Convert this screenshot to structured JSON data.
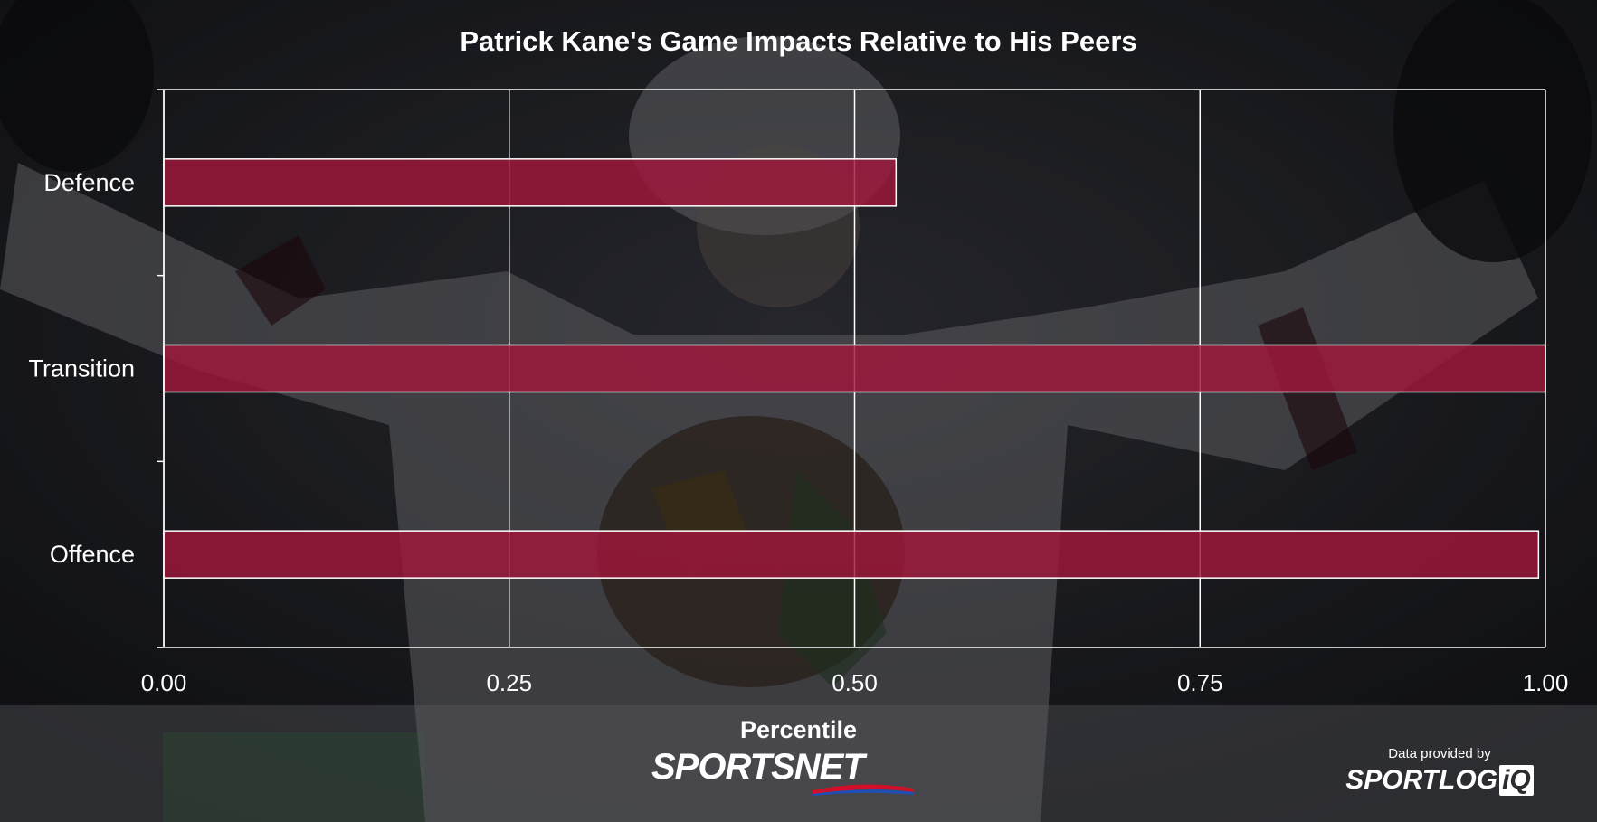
{
  "title": "Patrick Kane's Game Impacts Relative to His Peers",
  "chart_data": {
    "type": "bar",
    "orientation": "horizontal",
    "categories": [
      "Defence",
      "Transition",
      "Offence"
    ],
    "values": [
      0.53,
      1.0,
      0.995
    ],
    "xlabel": "Percentile",
    "xlim": [
      0,
      1
    ],
    "xticks": [
      "0.00",
      "0.25",
      "0.50",
      "0.75",
      "1.00"
    ],
    "grid": true,
    "bar_color": "#a0173a"
  },
  "branding": {
    "sportsnet_word": "SPORTSNET",
    "credit_small": "Data provided by",
    "credit_brand": "SPORTLOG",
    "credit_brand_suffix": "iQ"
  },
  "colors": {
    "background": "#1c1d22",
    "jersey": "#d8d8dc",
    "grid": "#ffffff"
  }
}
